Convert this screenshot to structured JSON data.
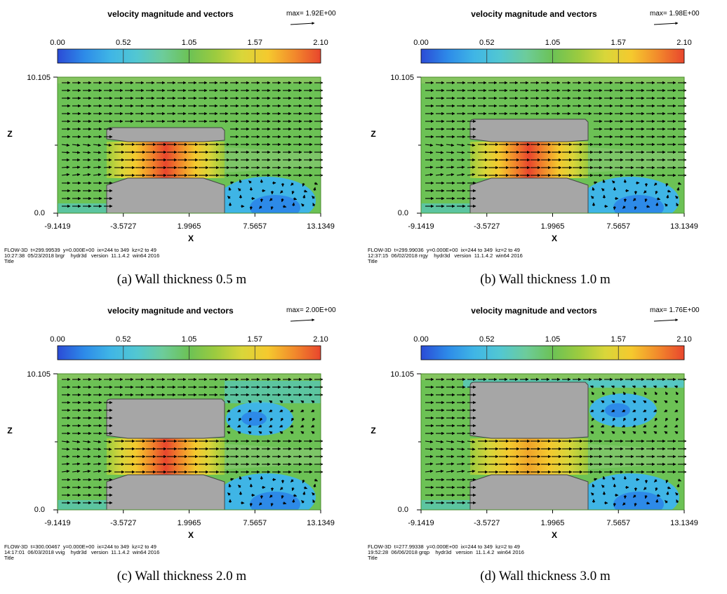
{
  "palette": [
    "#2b4bd6",
    "#2d8ae8",
    "#3fb5e6",
    "#52c7d2",
    "#6dcc9a",
    "#6cc255",
    "#9ccb3f",
    "#d9d63a",
    "#f5c92e",
    "#f28a2c",
    "#e8462d"
  ],
  "chart_data": [
    {
      "type": "heatmap",
      "title": "velocity magnitude and vectors",
      "max_label": "max= 1.92E+00",
      "colorbar": {
        "min": 0.0,
        "max": 2.1,
        "ticks": [
          "0.00",
          "0.52",
          "1.05",
          "1.57",
          "2.10"
        ]
      },
      "xlabel": "X",
      "ylabel": "Z",
      "xticks": [
        "-9.1419",
        "-3.5727",
        "1.9965",
        "7.5657",
        "13.1349"
      ],
      "yticks": [
        "10.105",
        "0.0"
      ],
      "xlim": [
        -9.1419,
        13.1349
      ],
      "zlim": [
        0.0,
        10.105
      ],
      "wall_thickness_m": 0.5,
      "meta_line1": "FLOW-3D  t=299.99539  y=0.000E+00  ix=244 to 349  kz=2 to 49",
      "meta_line2": "10:27:38  05/23/2018 brgr    hydr3d   version  11.1.4.2  win64 2016",
      "meta_line3": "Title",
      "caption": "(a) Wall thickness 0.5 m"
    },
    {
      "type": "heatmap",
      "title": "velocity magnitude and vectors",
      "max_label": "max= 1.98E+00",
      "colorbar": {
        "min": 0.0,
        "max": 2.1,
        "ticks": [
          "0.00",
          "0.52",
          "1.05",
          "1.57",
          "2.10"
        ]
      },
      "xlabel": "X",
      "ylabel": "Z",
      "xticks": [
        "-9.1419",
        "-3.5727",
        "1.9965",
        "7.5657",
        "13.1349"
      ],
      "yticks": [
        "10.105",
        "0.0"
      ],
      "xlim": [
        -9.1419,
        13.1349
      ],
      "zlim": [
        0.0,
        10.105
      ],
      "wall_thickness_m": 1.0,
      "meta_line1": "FLOW-3D  t=299.99036  y=0.000E+00  ix=244 to 349  kz=2 to 49",
      "meta_line2": "12:37:15  06/02/2018 rrgy    hydr3d   version  11.1.4.2  win64 2016",
      "meta_line3": "Title",
      "caption": "(b) Wall thickness 1.0 m"
    },
    {
      "type": "heatmap",
      "title": "velocity magnitude and vectors",
      "max_label": "max= 2.00E+00",
      "colorbar": {
        "min": 0.0,
        "max": 2.1,
        "ticks": [
          "0.00",
          "0.52",
          "1.05",
          "1.57",
          "2.10"
        ]
      },
      "xlabel": "X",
      "ylabel": "Z",
      "xticks": [
        "-9.1419",
        "-3.5727",
        "1.9965",
        "7.5657",
        "13.1349"
      ],
      "yticks": [
        "10.105",
        "0.0"
      ],
      "xlim": [
        -9.1419,
        13.1349
      ],
      "zlim": [
        0.0,
        10.105
      ],
      "wall_thickness_m": 2.0,
      "meta_line1": "FLOW-3D  t=300.00467  y=0.000E+00  ix=244 to 349  kz=2 to 49",
      "meta_line2": "14:17:01  06/03/2018 vvig    hydr3d   version  11.1.4.2  win64 2016",
      "meta_line3": "Title",
      "caption": "(c) Wall thickness 2.0 m"
    },
    {
      "type": "heatmap",
      "title": "velocity magnitude and vectors",
      "max_label": "max= 1.76E+00",
      "colorbar": {
        "min": 0.0,
        "max": 2.1,
        "ticks": [
          "0.00",
          "0.52",
          "1.05",
          "1.57",
          "2.10"
        ]
      },
      "xlabel": "X",
      "ylabel": "Z",
      "xticks": [
        "-9.1419",
        "-3.5727",
        "1.9965",
        "7.5657",
        "13.1349"
      ],
      "yticks": [
        "10.105",
        "0.0"
      ],
      "xlim": [
        -9.1419,
        13.1349
      ],
      "zlim": [
        0.0,
        10.105
      ],
      "wall_thickness_m": 3.0,
      "meta_line1": "FLOW-3D  t=277.99338  y=0.000E+00  ix=244 to 349  kz=2 to 49",
      "meta_line2": "19:52:28  06/06/2018 grqp    hydr3d   version  11.1.4.2  win64 2016",
      "meta_line3": "Title",
      "caption": "(d) Wall thickness 3.0 m"
    }
  ]
}
